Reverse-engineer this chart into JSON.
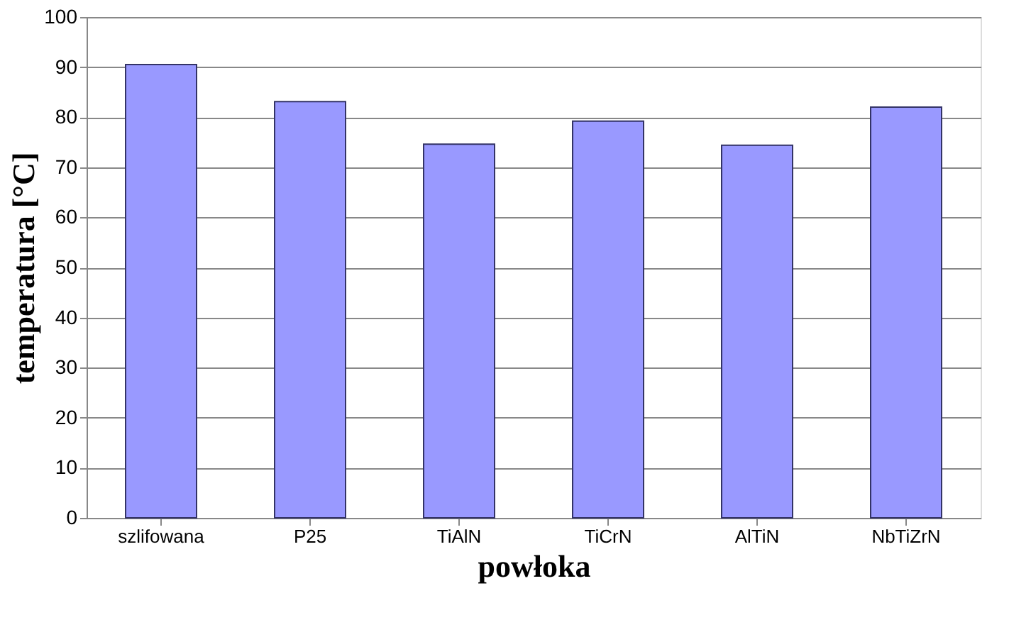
{
  "chart_data": {
    "type": "bar",
    "xlabel": "powłoka",
    "ylabel": "temperatura  [°C]",
    "categories": [
      "szlifowana",
      "P25",
      "TiAlN",
      "TiCrN",
      "AlTiN",
      "NbTiZrN"
    ],
    "values": [
      90.5,
      83.1,
      74.6,
      79.2,
      74.4,
      82.0
    ],
    "color": "#9999ff",
    "ylim": [
      0,
      100
    ],
    "yticks": [
      0,
      10,
      20,
      30,
      40,
      50,
      60,
      70,
      80,
      90,
      100
    ],
    "grid": "y"
  }
}
